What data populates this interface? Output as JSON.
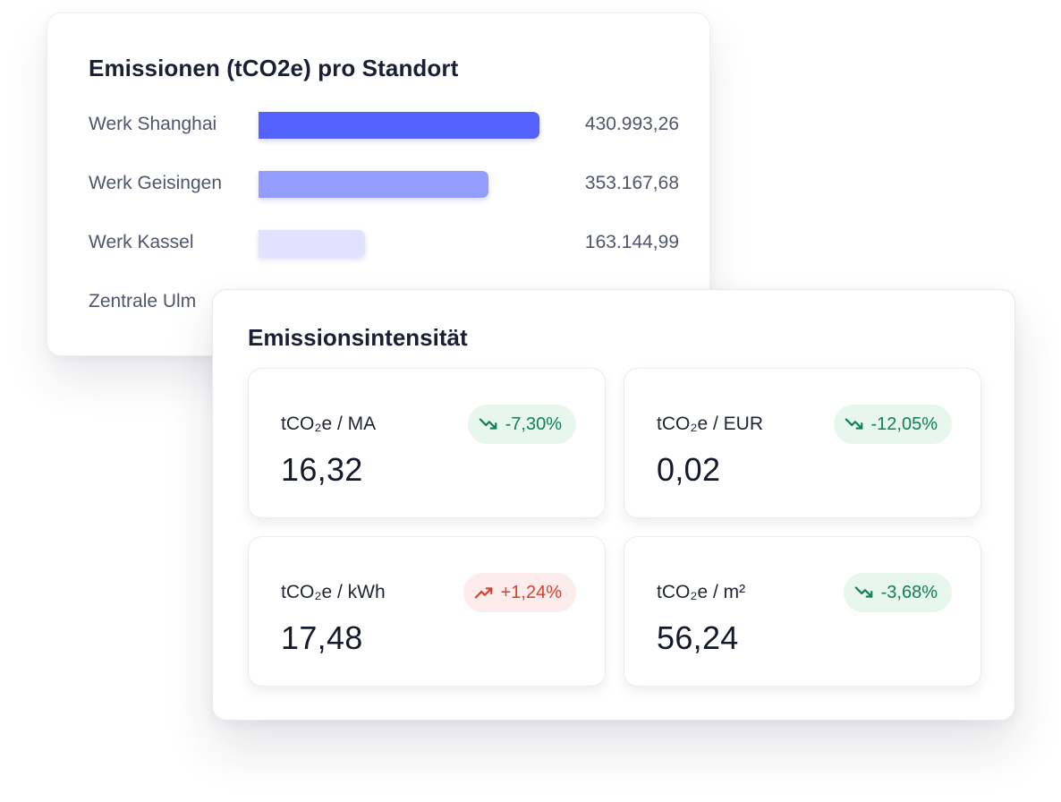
{
  "sites_card": {
    "title": "Emissionen (tCO2e) pro Standort",
    "rows": [
      {
        "label": "Werk Shanghai",
        "value_text": "430.993,26",
        "value": 430993.26,
        "color": "#5463ff"
      },
      {
        "label": "Werk Geisingen",
        "value_text": "353.167,68",
        "value": 353167.68,
        "color": "#939cff"
      },
      {
        "label": "Werk Kassel",
        "value_text": "163.144,99",
        "value": 163144.99,
        "color": "#e0e2ff"
      },
      {
        "label": "Zentrale Ulm",
        "value_text": "",
        "value": null,
        "color": "#f2f3ff"
      }
    ]
  },
  "intensity_card": {
    "title": "Emissionsintensität",
    "tiles": [
      {
        "metric": "tCO₂e / MA",
        "value": "16,32",
        "change": "-7,30%",
        "trend": "down",
        "trend_icon": "trending-down-icon"
      },
      {
        "metric": "tCO₂e / EUR",
        "value": "0,02",
        "change": "-12,05%",
        "trend": "down",
        "trend_icon": "trending-down-icon"
      },
      {
        "metric": "tCO₂e / kWh",
        "value": "17,48",
        "change": "+1,24%",
        "trend": "up",
        "trend_icon": "trending-up-icon"
      },
      {
        "metric": "tCO₂e / m²",
        "value": "56,24",
        "change": "-3,68%",
        "trend": "down",
        "trend_icon": "trending-down-icon"
      }
    ]
  },
  "colors": {
    "positive_text": "#13804f",
    "positive_bg": "#e7f7ee",
    "negative_text": "#d6402e",
    "negative_bg": "#fdecec"
  }
}
